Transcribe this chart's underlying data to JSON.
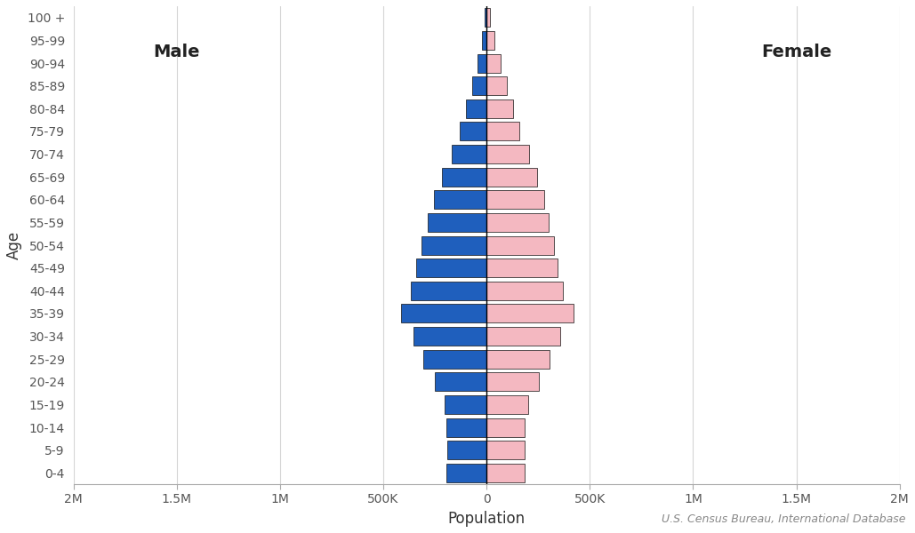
{
  "age_groups": [
    "0-4",
    "5-9",
    "10-14",
    "15-19",
    "20-24",
    "25-29",
    "30-34",
    "35-39",
    "40-44",
    "45-49",
    "50-54",
    "55-59",
    "60-64",
    "65-69",
    "70-74",
    "75-79",
    "80-84",
    "85-89",
    "90-94",
    "95-99",
    "100 +"
  ],
  "male": [
    195000,
    190000,
    195000,
    205000,
    250000,
    305000,
    355000,
    415000,
    365000,
    340000,
    315000,
    285000,
    255000,
    215000,
    170000,
    130000,
    100000,
    70000,
    45000,
    20000,
    8000
  ],
  "female": [
    185000,
    185000,
    185000,
    200000,
    255000,
    305000,
    355000,
    420000,
    370000,
    345000,
    325000,
    300000,
    280000,
    245000,
    205000,
    160000,
    130000,
    100000,
    70000,
    38000,
    15000
  ],
  "male_color": "#1f5fbd",
  "female_color": "#f4b8c1",
  "bar_edge_color": "#111111",
  "background_color": "#ffffff",
  "grid_color": "#d5d5d5",
  "xlabel": "Population",
  "ylabel": "Age",
  "male_label": "Male",
  "female_label": "Female",
  "source_text": "U.S. Census Bureau, International Database",
  "xlim": 2000000,
  "xticks": [
    -2000000,
    -1500000,
    -1000000,
    -500000,
    0,
    500000,
    1000000,
    1500000,
    2000000
  ],
  "xtick_labels": [
    "2M",
    "1.5M",
    "1M",
    "500K",
    "0",
    "500K",
    "1M",
    "1.5M",
    "2M"
  ],
  "center_line_color": "#000000",
  "label_fontsize": 12,
  "tick_fontsize": 10,
  "source_fontsize": 9,
  "annotation_fontsize": 14
}
